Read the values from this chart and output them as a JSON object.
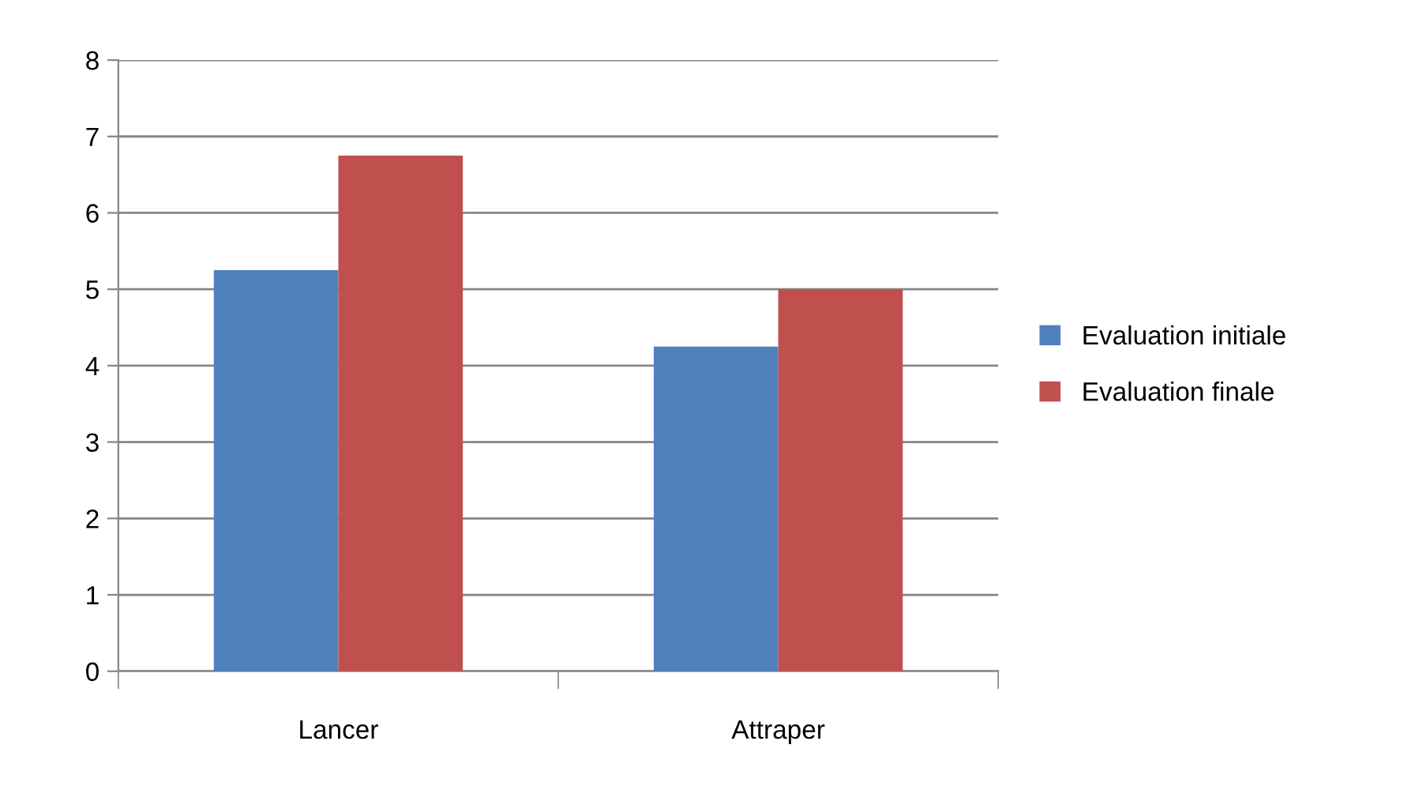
{
  "chart_data": {
    "type": "bar",
    "categories": [
      "Lancer",
      "Attraper"
    ],
    "series": [
      {
        "name": "Evaluation initiale",
        "color": "#4f81bd",
        "values": [
          5.25,
          4.25
        ]
      },
      {
        "name": "Evaluation finale",
        "color": "#c0504d",
        "values": [
          6.75,
          5.0
        ]
      }
    ],
    "ylim": [
      0,
      8
    ],
    "yticks": [
      0,
      1,
      2,
      3,
      4,
      5,
      6,
      7,
      8
    ],
    "grid": "y",
    "legend": "right"
  }
}
